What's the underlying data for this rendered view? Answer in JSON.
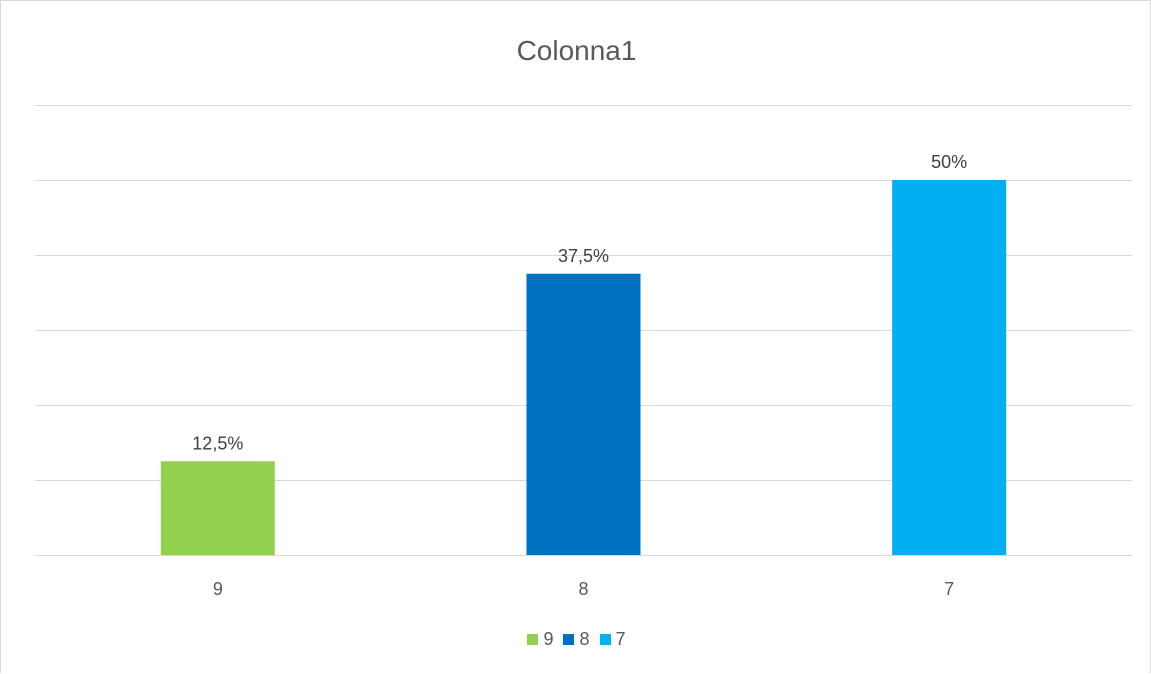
{
  "chart_data": {
    "type": "bar",
    "title": "Colonna1",
    "categories": [
      "9",
      "8",
      "7"
    ],
    "values": [
      12.5,
      37.5,
      50
    ],
    "value_labels": [
      "12,5%",
      "37,5%",
      "50%"
    ],
    "colors": [
      "#92D050",
      "#0070C0",
      "#00B0F0"
    ],
    "ylim": [
      0,
      60
    ],
    "grid": true,
    "legend": {
      "position": "bottom",
      "entries": [
        {
          "label": "9",
          "color": "#92D050"
        },
        {
          "label": "8",
          "color": "#0070C0"
        },
        {
          "label": "7",
          "color": "#00B0F0"
        }
      ]
    },
    "xlabel": "",
    "ylabel": ""
  }
}
